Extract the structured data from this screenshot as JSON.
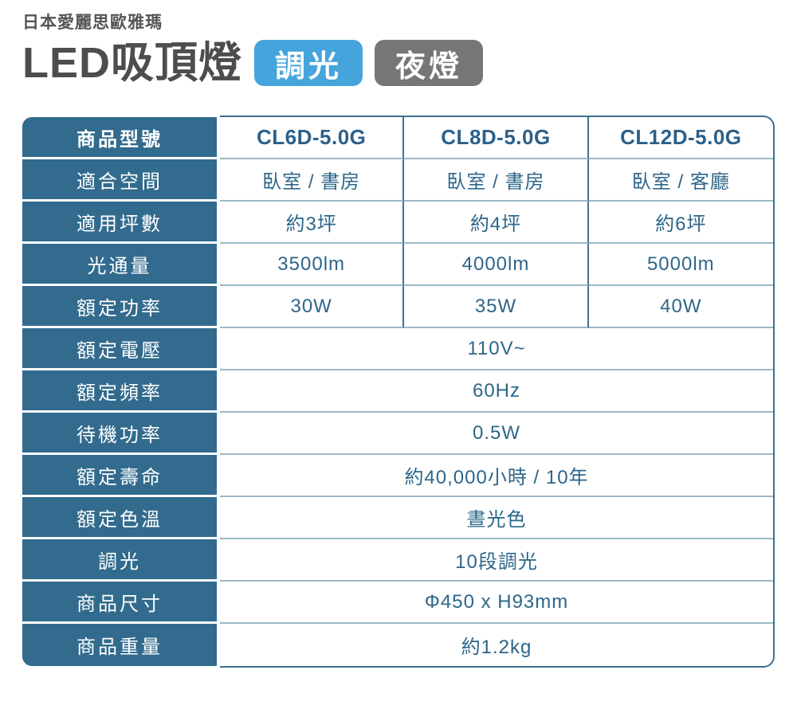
{
  "header": {
    "brand": "日本愛麗思歐雅瑪",
    "title": "LED吸頂燈",
    "badges": [
      {
        "label": "調光",
        "color": "#46a4dc"
      },
      {
        "label": "夜燈",
        "color": "#767676"
      }
    ]
  },
  "colors": {
    "table_header_bg": "#326b8d",
    "table_text": "#2d6689",
    "outer_border": "#3a7090",
    "row_divider": "#9cb8c8",
    "column_divider": "#44718e",
    "title_text": "#4d4d4d"
  },
  "table": {
    "header_row": {
      "label": "商品型號",
      "values": [
        "CL6D-5.0G",
        "CL8D-5.0G",
        "CL12D-5.0G"
      ]
    },
    "rows": [
      {
        "label": "適合空間",
        "values": [
          "臥室 / 書房",
          "臥室 / 書房",
          "臥室 / 客廳"
        ]
      },
      {
        "label": "適用坪數",
        "values": [
          "約3坪",
          "約4坪",
          "約6坪"
        ]
      },
      {
        "label": "光通量",
        "values": [
          "3500lm",
          "4000lm",
          "5000lm"
        ]
      },
      {
        "label": "額定功率",
        "values": [
          "30W",
          "35W",
          "40W"
        ]
      },
      {
        "label": "額定電壓",
        "values": [
          "110V~"
        ],
        "span": true
      },
      {
        "label": "額定頻率",
        "values": [
          "60Hz"
        ],
        "span": true
      },
      {
        "label": "待機功率",
        "values": [
          "0.5W"
        ],
        "span": true
      },
      {
        "label": "額定壽命",
        "values": [
          "約40,000小時 / 10年"
        ],
        "span": true
      },
      {
        "label": "額定色溫",
        "values": [
          "晝光色"
        ],
        "span": true
      },
      {
        "label": "調光",
        "values": [
          "10段調光"
        ],
        "span": true
      },
      {
        "label": "商品尺寸",
        "values": [
          "Φ450 x H93mm"
        ],
        "span": true
      },
      {
        "label": "商品重量",
        "values": [
          "約1.2kg"
        ],
        "span": true
      }
    ]
  }
}
